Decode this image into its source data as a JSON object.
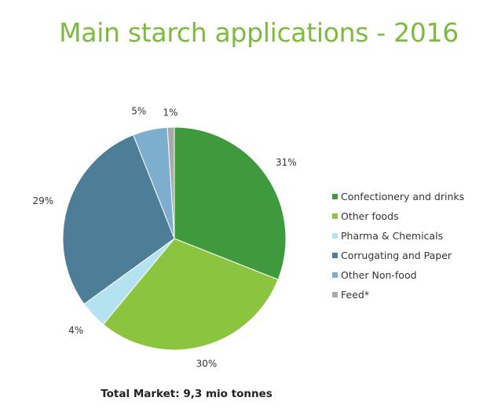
{
  "title": "Main starch applications - 2016",
  "total_text": "Total Market: 9,3 mio tonnes",
  "chart_data": {
    "type": "pie",
    "title": "Main starch applications - 2016",
    "unit": "%",
    "slices": [
      {
        "label": "Confectionery and drinks",
        "value": 31,
        "display": "31%",
        "color": "#3f9a3d"
      },
      {
        "label": "Other foods",
        "value": 30,
        "display": "30%",
        "color": "#8bc53f"
      },
      {
        "label": "Pharma & Chemicals",
        "value": 4,
        "display": "4%",
        "color": "#b4e2f0"
      },
      {
        "label": "Corrugating and Paper",
        "value": 29,
        "display": "29%",
        "color": "#4e7d97"
      },
      {
        "label": "Other Non-food",
        "value": 5,
        "display": "5%",
        "color": "#7eaecd"
      },
      {
        "label": "Feed*",
        "value": 1,
        "display": "1%",
        "color": "#aaaaaa"
      }
    ],
    "start": "12 o'clock",
    "direction": "clockwise",
    "legend_position": "right"
  }
}
